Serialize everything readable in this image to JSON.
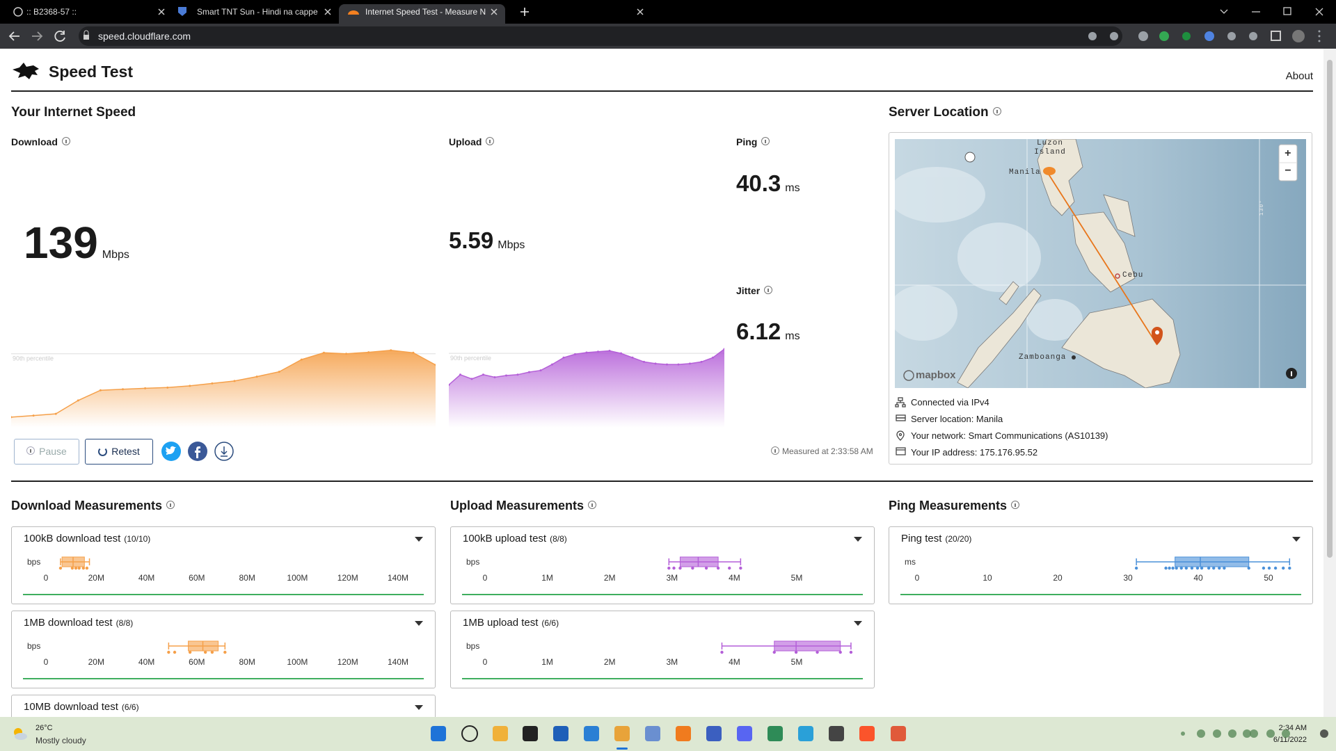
{
  "browser": {
    "tabs": [
      ":: B2368-57 ::",
      "Smart TNT Sun - Hindi na cappe",
      "Internet Speed Test - Measure N"
    ],
    "url": "speed.cloudflare.com"
  },
  "header": {
    "title": "Speed Test",
    "about": "About"
  },
  "speed": {
    "title": "Your Internet Speed",
    "download": {
      "label": "Download",
      "value": 139,
      "unit": "Mbps"
    },
    "upload": {
      "label": "Upload",
      "value": 5.59,
      "unit": "Mbps"
    },
    "ping": {
      "label": "Ping",
      "value": 40.3,
      "unit": "ms"
    },
    "jitter": {
      "label": "Jitter",
      "value": 6.12,
      "unit": "ms"
    },
    "buttons": {
      "pause": "Pause",
      "retest": "Retest"
    },
    "measured_at": "Measured at 2:33:58 AM"
  },
  "server": {
    "title": "Server Location",
    "map": {
      "luzon": "Luzon Island",
      "manila": "Manila",
      "cebu": "Cebu",
      "zamboanga": "Zamboanga",
      "meridian": "130°",
      "logo": "mapbox",
      "zoom_in": "+",
      "zoom_out": "−"
    },
    "info": [
      "Connected via IPv4",
      "Server location: Manila",
      "Your network: Smart Communications (AS10139)",
      "Your IP address: 175.176.95.52"
    ]
  },
  "measurement_titles": [
    "Download Measurements",
    "Upload Measurements",
    "Ping Measurements"
  ],
  "chart_data": [
    {
      "type": "area",
      "percentile_label": "90th percentile",
      "color": "#f5a04a",
      "ylim": [
        0,
        150
      ],
      "values": [
        8.7,
        12,
        15.6,
        43,
        64,
        66,
        68,
        69.5,
        73,
        78,
        83,
        92,
        102,
        127,
        141,
        139,
        142,
        146,
        141,
        116
      ]
    },
    {
      "type": "area",
      "percentile_label": "90th percentile",
      "color": "#b45fd8",
      "ylim": [
        0,
        6
      ],
      "values": [
        3.0,
        3.84,
        3.49,
        3.84,
        3.63,
        3.77,
        3.84,
        4.05,
        4.19,
        4.68,
        5.24,
        5.52,
        5.66,
        5.73,
        5.8,
        5.59,
        5.24,
        4.89,
        4.75,
        4.68,
        4.68,
        4.75,
        4.89,
        5.24,
        5.94
      ]
    },
    {
      "type": "box",
      "title": "100kB download test",
      "count": "(10/10)",
      "unit": "bps",
      "color": "#f5a04a",
      "xlim": [
        0,
        140000000
      ],
      "xticks": [
        0,
        {
          "value": 20000000,
          "label": "20M"
        },
        {
          "value": 40000000,
          "label": "40M"
        },
        {
          "value": 60000000,
          "label": "60M"
        },
        {
          "value": 80000000,
          "label": "80M"
        },
        {
          "value": 100000000,
          "label": "100M"
        },
        {
          "value": 120000000,
          "label": "120M"
        },
        {
          "value": 140000000,
          "label": "140M"
        }
      ],
      "stats": {
        "min": 5800000,
        "q1": 6400000,
        "median": 10800000,
        "q3": 15300000,
        "max": 17300000
      },
      "points": [
        5800000,
        10500000,
        11900000,
        13200000,
        14900000,
        16300000
      ]
    },
    {
      "type": "box",
      "title": "1MB download test",
      "count": "(8/8)",
      "unit": "bps",
      "color": "#f5a04a",
      "xlim": [
        0,
        140000000
      ],
      "xticks": [
        0,
        {
          "value": 20000000,
          "label": "20M"
        },
        {
          "value": 40000000,
          "label": "40M"
        },
        {
          "value": 60000000,
          "label": "60M"
        },
        {
          "value": 80000000,
          "label": "80M"
        },
        {
          "value": 100000000,
          "label": "100M"
        },
        {
          "value": 120000000,
          "label": "120M"
        },
        {
          "value": 140000000,
          "label": "140M"
        }
      ],
      "stats": {
        "min": 48800000,
        "q1": 56600000,
        "median": 62400000,
        "q3": 68500000,
        "max": 71200000
      },
      "points": [
        48800000,
        51200000,
        57300000,
        63400000,
        66100000,
        71200000
      ]
    },
    {
      "type": "box",
      "title": "10MB download test",
      "count": "(6/6)"
    },
    {
      "type": "box",
      "title": "100kB upload test",
      "count": "(8/8)",
      "unit": "bps",
      "color": "#b45fd8",
      "xlim": [
        0,
        5000000
      ],
      "xticks": [
        0,
        {
          "value": 1000000,
          "label": "1M"
        },
        {
          "value": 2000000,
          "label": "2M"
        },
        {
          "value": 3000000,
          "label": "3M"
        },
        {
          "value": 4000000,
          "label": "4M"
        },
        {
          "value": 5000000,
          "label": "5M"
        }
      ],
      "stats": {
        "min": 2950000,
        "q1": 3130000,
        "median": 3420000,
        "q3": 3740000,
        "max": 4100000
      },
      "points": [
        2950000,
        3030000,
        3130000,
        3330000,
        3550000,
        3740000,
        3920000,
        4100000
      ]
    },
    {
      "type": "box",
      "title": "1MB upload test",
      "count": "(6/6)",
      "unit": "bps",
      "color": "#b45fd8",
      "xlim": [
        0,
        5000000
      ],
      "xticks": [
        0,
        {
          "value": 1000000,
          "label": "1M"
        },
        {
          "value": 2000000,
          "label": "2M"
        },
        {
          "value": 3000000,
          "label": "3M"
        },
        {
          "value": 4000000,
          "label": "4M"
        },
        {
          "value": 5000000,
          "label": "5M"
        }
      ],
      "stats": {
        "min": 3800000,
        "q1": 4640000,
        "median": 4990000,
        "q3": 5700000,
        "max": 5870000
      },
      "points": [
        3800000,
        4640000,
        4990000,
        5330000,
        5700000,
        5870000
      ]
    },
    {
      "type": "box",
      "title": "Ping test",
      "count": "(20/20)",
      "unit": "ms",
      "color": "#4a90d9",
      "xlim": [
        0,
        50
      ],
      "xticks": [
        0,
        10,
        20,
        30,
        40,
        50
      ],
      "stats": {
        "min": 31.2,
        "q1": 36.7,
        "median": 40.3,
        "q3": 47.2,
        "max": 53.0
      },
      "points": [
        31.2,
        35.4,
        35.9,
        36.4,
        36.9,
        37.6,
        38.3,
        39.1,
        39.9,
        40.5,
        41.5,
        42.2,
        43.0,
        43.7,
        47.2,
        49.3,
        50.1,
        51.0,
        52.1,
        53.0
      ]
    }
  ],
  "taskbar": {
    "temperature": "26°C",
    "weather": "Mostly cloudy",
    "time": "2:34 AM",
    "date": "6/11/2022"
  }
}
